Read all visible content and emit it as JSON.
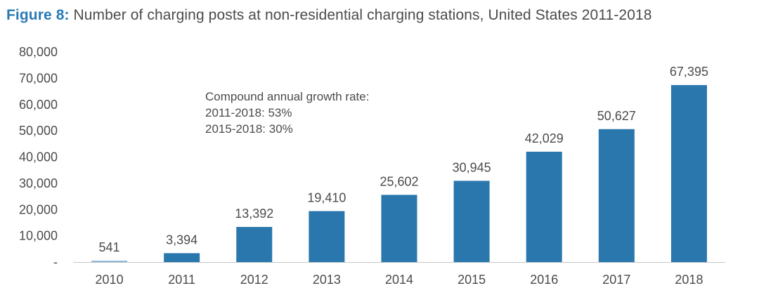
{
  "figure": {
    "label": "Figure 8:",
    "title": "Number of charging posts at non-residential charging stations, United States 2011-2018"
  },
  "note": {
    "lines": [
      "Compound annual growth rate:",
      "2011-2018: 53%",
      "2015-2018: 30%"
    ]
  },
  "chart_data": {
    "type": "bar",
    "title": "Number of charging posts at non-residential charging stations, United States 2011-2018",
    "xlabel": "",
    "ylabel": "",
    "categories": [
      "2010",
      "2011",
      "2012",
      "2013",
      "2014",
      "2015",
      "2016",
      "2017",
      "2018"
    ],
    "values": [
      541,
      3394,
      13392,
      19410,
      25602,
      30945,
      42029,
      50627,
      67395
    ],
    "value_labels": [
      "541",
      "3,394",
      "13,392",
      "19,410",
      "25,602",
      "30,945",
      "42,029",
      "50,627",
      "67,395"
    ],
    "bar_colors": [
      "#8fb8d8",
      "#2a77ad",
      "#2a77ad",
      "#2a77ad",
      "#2a77ad",
      "#2a77ad",
      "#2a77ad",
      "#2a77ad",
      "#2a77ad"
    ],
    "ylim": [
      0,
      80000
    ],
    "yticks": [
      0,
      10000,
      20000,
      30000,
      40000,
      50000,
      60000,
      70000,
      80000
    ],
    "ytick_labels": [
      "-",
      "10,000",
      "20,000",
      "30,000",
      "40,000",
      "50,000",
      "60,000",
      "70,000",
      "80,000"
    ],
    "grid": false,
    "axis_color": "#c8c8c8"
  }
}
